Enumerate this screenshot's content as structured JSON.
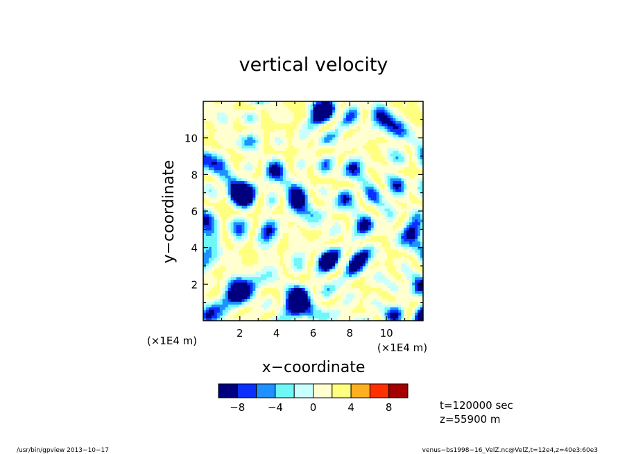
{
  "chart_data": {
    "type": "heatmap",
    "title": "vertical velocity",
    "xlabel": "x−coordinate",
    "ylabel": "y−coordinate",
    "x_unit": "(×1E4 m)",
    "y_unit": "(×1E4 m)",
    "xlim": [
      0,
      12
    ],
    "ylim": [
      0,
      12
    ],
    "x_ticks": [
      2,
      4,
      6,
      8,
      10
    ],
    "y_ticks": [
      2,
      4,
      6,
      8,
      10
    ],
    "x_tick_labels": [
      "2",
      "4",
      "6",
      "8",
      "10"
    ],
    "y_tick_labels": [
      "2",
      "4",
      "6",
      "8",
      "10"
    ],
    "colorbar": {
      "levels": [
        -10,
        -8,
        -6,
        -4,
        -2,
        0,
        2,
        4,
        6,
        8,
        10
      ],
      "colors": [
        "#00007f",
        "#0a2fff",
        "#1e90ff",
        "#6ef7f7",
        "#c8ffff",
        "#ffffd0",
        "#ffff80",
        "#ffb020",
        "#ff3000",
        "#a50000"
      ],
      "tick_values": [
        -8,
        -4,
        0,
        4,
        8
      ],
      "tick_labels": [
        "−8",
        "−4",
        "0",
        "4",
        "8"
      ]
    },
    "annotations": [
      "t=120000 sec",
      "z=55900  m"
    ],
    "footer_left": "/usr/bin/gpview   2013−10−17",
    "footer_right": "venus−bs1998−16_VelZ.nc@VelZ,t=12e4,z=40e3:60e3"
  }
}
